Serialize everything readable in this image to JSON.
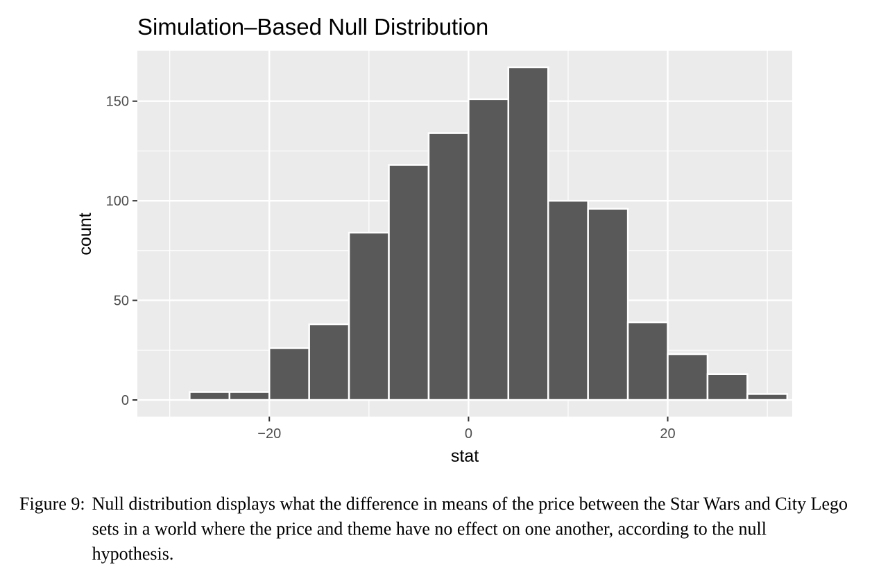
{
  "chart_data": {
    "type": "bar",
    "title": "Simulation–Based Null Distribution",
    "xlabel": "stat",
    "ylabel": "count",
    "binwidth": 4,
    "bins": [
      {
        "center": -26,
        "count": 4
      },
      {
        "center": -22,
        "count": 4
      },
      {
        "center": -18,
        "count": 26
      },
      {
        "center": -14,
        "count": 38
      },
      {
        "center": -10,
        "count": 84
      },
      {
        "center": -6,
        "count": 118
      },
      {
        "center": -2,
        "count": 134
      },
      {
        "center": 2,
        "count": 151
      },
      {
        "center": 6,
        "count": 167
      },
      {
        "center": 10,
        "count": 100
      },
      {
        "center": 14,
        "count": 96
      },
      {
        "center": 18,
        "count": 39
      },
      {
        "center": 22,
        "count": 23
      },
      {
        "center": 26,
        "count": 13
      },
      {
        "center": 30,
        "count": 3
      }
    ],
    "xlim": [
      -33.25,
      32.5
    ],
    "ylim": [
      -8.35,
      175.35
    ],
    "x_ticks": [
      -20,
      0,
      20
    ],
    "x_tick_labels": [
      "−20",
      "0",
      "20"
    ],
    "y_ticks": [
      0,
      50,
      100,
      150
    ],
    "y_tick_labels": [
      "0",
      "50",
      "100",
      "150"
    ],
    "grid": true,
    "colors": {
      "bar_fill": "#595959",
      "bar_outline": "#ffffff",
      "panel": "#ebebeb",
      "grid": "#ffffff"
    }
  },
  "caption": {
    "label": "Figure 9:",
    "text": "Null distribution displays what the difference in means of the price between the Star Wars and City Lego sets in a world where the price and theme have no effect on one another, according to the null hypothesis."
  }
}
